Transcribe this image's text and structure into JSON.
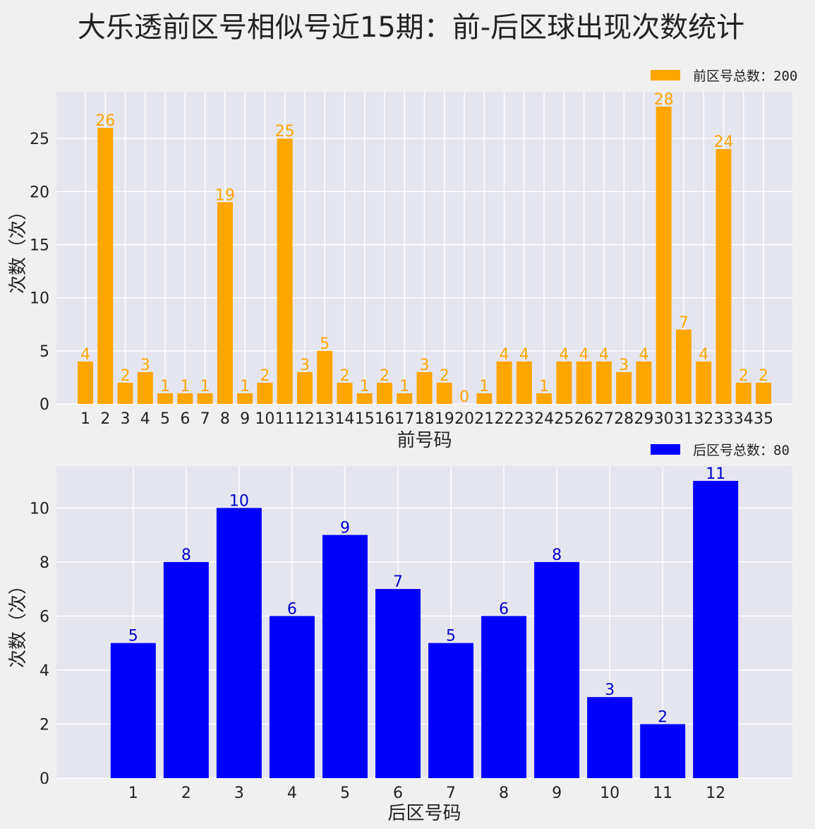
{
  "title": "大乐透前区号相似号近15期：前-后区球出现次数统计",
  "chart_data": [
    {
      "type": "bar",
      "categories": [
        "1",
        "2",
        "3",
        "4",
        "5",
        "6",
        "7",
        "8",
        "9",
        "10",
        "11",
        "12",
        "13",
        "14",
        "15",
        "16",
        "17",
        "18",
        "19",
        "20",
        "21",
        "22",
        "23",
        "24",
        "25",
        "26",
        "27",
        "28",
        "29",
        "30",
        "31",
        "32",
        "33",
        "34",
        "35"
      ],
      "values": [
        4,
        26,
        2,
        3,
        1,
        1,
        1,
        19,
        1,
        2,
        25,
        3,
        5,
        2,
        1,
        2,
        1,
        3,
        2,
        0,
        1,
        4,
        4,
        1,
        4,
        4,
        4,
        3,
        4,
        28,
        7,
        4,
        24,
        2,
        2
      ],
      "xlabel": "前号码",
      "ylabel": "次数（次）",
      "ylim": [
        0,
        29.4
      ],
      "yticks": [
        0,
        5,
        10,
        15,
        20,
        25
      ],
      "legend": "前区号总数：200",
      "legend_position": "top-right",
      "color": "#ffa500",
      "grid": true
    },
    {
      "type": "bar",
      "categories": [
        "1",
        "2",
        "3",
        "4",
        "5",
        "6",
        "7",
        "8",
        "9",
        "10",
        "11",
        "12"
      ],
      "values": [
        5,
        8,
        10,
        6,
        9,
        7,
        5,
        6,
        8,
        3,
        2,
        11
      ],
      "xlabel": "后区号码",
      "ylabel": "次数（次）",
      "ylim": [
        0,
        11.55
      ],
      "yticks": [
        0,
        2,
        4,
        6,
        8,
        10
      ],
      "legend": "后区号总数：80",
      "legend_position": "top-right",
      "color": "#0000ff",
      "label_color": "#0000cc",
      "grid": true
    }
  ]
}
